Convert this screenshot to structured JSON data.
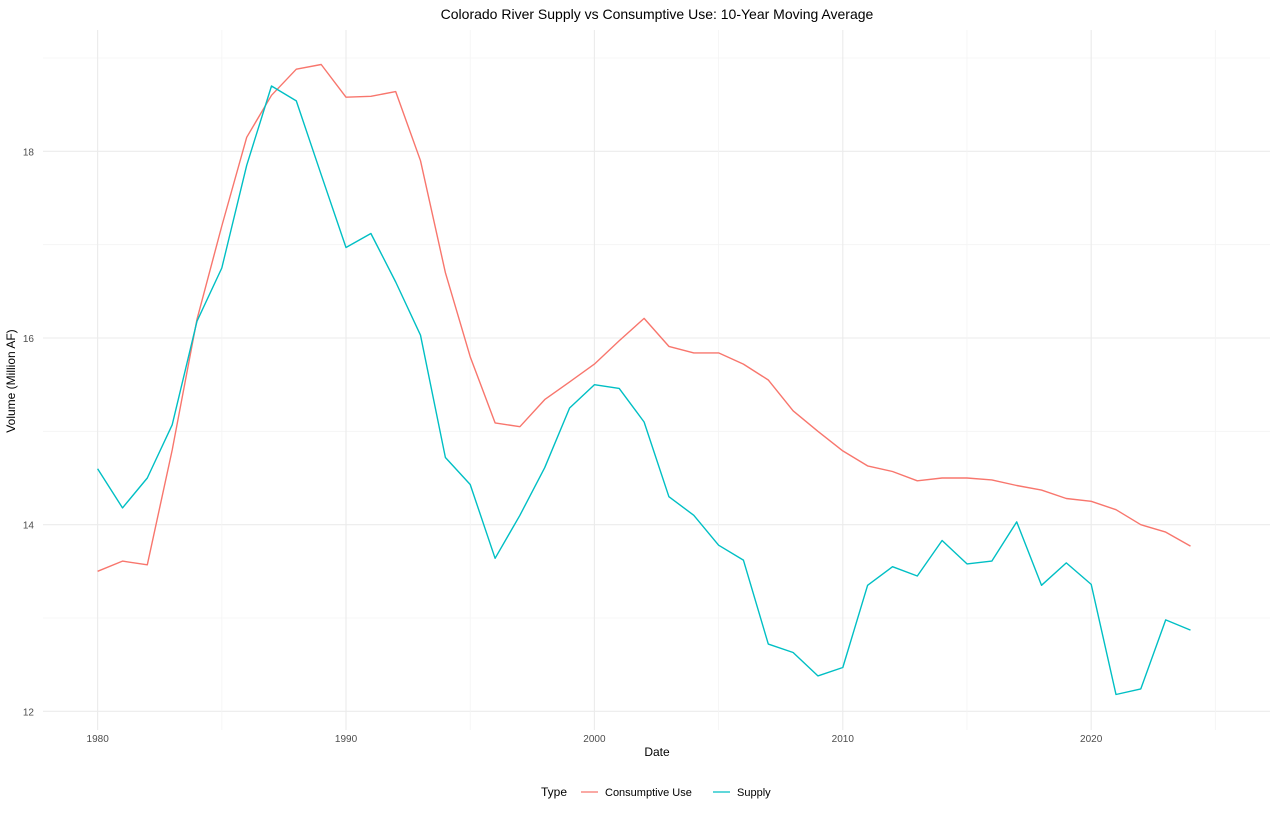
{
  "chart_data": {
    "type": "line",
    "title": "Colorado River Supply vs Consumptive Use: 10-Year Moving Average",
    "xlabel": "Date",
    "ylabel": "Volume (Million AF)",
    "xlim": [
      1977.8,
      2027.2
    ],
    "ylim": [
      11.8,
      19.3
    ],
    "x_ticks": [
      1980,
      1990,
      2000,
      2010,
      2020
    ],
    "y_ticks": [
      12,
      14,
      16,
      18
    ],
    "grid": true,
    "legend": {
      "title": "Type",
      "position": "bottom"
    },
    "x": [
      1980,
      1981,
      1982,
      1983,
      1984,
      1985,
      1986,
      1987,
      1988,
      1989,
      1990,
      1991,
      1992,
      1993,
      1994,
      1995,
      1996,
      1997,
      1998,
      1999,
      2000,
      2001,
      2002,
      2003,
      2004,
      2005,
      2006,
      2007,
      2008,
      2009,
      2010,
      2011,
      2012,
      2013,
      2014,
      2015,
      2016,
      2017,
      2018,
      2019,
      2020,
      2021,
      2022,
      2023,
      2024
    ],
    "series": [
      {
        "name": "Consumptive Use",
        "color": "#F8766D",
        "values": [
          13.5,
          13.61,
          13.57,
          14.8,
          16.2,
          17.2,
          18.15,
          18.6,
          18.88,
          18.93,
          18.58,
          18.59,
          18.64,
          17.9,
          16.7,
          15.8,
          15.09,
          15.05,
          15.34,
          15.53,
          15.72,
          15.97,
          16.21,
          15.91,
          15.84,
          15.84,
          15.72,
          15.55,
          15.22,
          15.0,
          14.79,
          14.63,
          14.57,
          14.47,
          14.5,
          14.5,
          14.48,
          14.42,
          14.37,
          14.28,
          14.25,
          14.16,
          14.0,
          13.92,
          13.77
        ]
      },
      {
        "name": "Supply",
        "color": "#00BFC4",
        "values": [
          14.6,
          14.18,
          14.5,
          15.07,
          16.18,
          16.75,
          17.85,
          18.7,
          18.54,
          17.75,
          16.97,
          17.12,
          16.6,
          16.03,
          14.72,
          14.43,
          13.64,
          14.1,
          14.61,
          15.25,
          15.5,
          15.46,
          15.1,
          14.3,
          14.1,
          13.78,
          13.62,
          12.72,
          12.63,
          12.38,
          12.47,
          13.35,
          13.55,
          13.45,
          13.83,
          13.58,
          13.61,
          14.03,
          13.35,
          13.59,
          13.36,
          12.18,
          12.24,
          12.98,
          12.87
        ]
      }
    ]
  }
}
